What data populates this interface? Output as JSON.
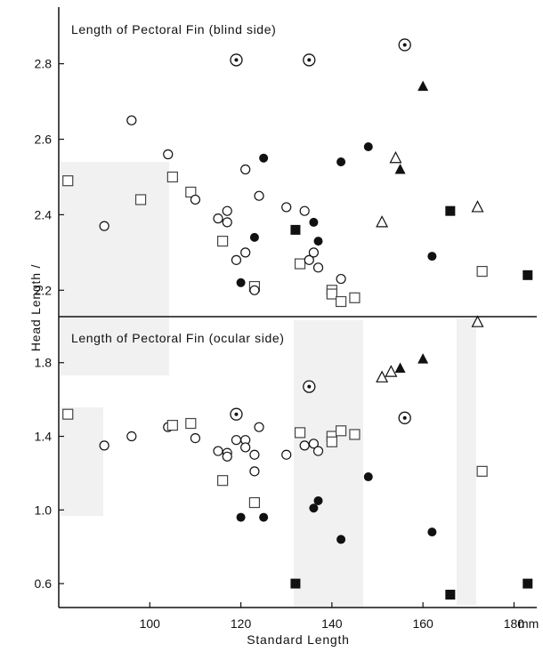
{
  "chart_data": {
    "type": "scatter",
    "ylabel": "Head Length /",
    "xlabel": "Standard Length",
    "x_unit": "mm",
    "xlim": [
      80,
      185
    ],
    "x_ticks": [
      100,
      120,
      140,
      160,
      180
    ],
    "x_tick_labels": [
      "100",
      "120",
      "140",
      "160",
      "180"
    ],
    "symbol_legend": {
      "open_circle": "○",
      "filled_circle": "●",
      "dotted_circle": "⊙",
      "open_square": "□",
      "filled_square": "■",
      "open_triangle": "△",
      "filled_triangle": "▲"
    },
    "panels": [
      {
        "title": "Length of Pectoral Fin (blind side)",
        "ylim": [
          2.13,
          2.95
        ],
        "y_ticks": [
          2.2,
          2.4,
          2.6,
          2.8
        ],
        "y_tick_labels": [
          "2.2",
          "2.4",
          "2.6",
          "2.8"
        ],
        "points": [
          {
            "x": 82,
            "y": 2.49,
            "marker": "open_square"
          },
          {
            "x": 90,
            "y": 2.37,
            "marker": "open_circle"
          },
          {
            "x": 96,
            "y": 2.65,
            "marker": "open_circle"
          },
          {
            "x": 98,
            "y": 2.44,
            "marker": "open_square"
          },
          {
            "x": 104,
            "y": 2.56,
            "marker": "open_circle"
          },
          {
            "x": 105,
            "y": 2.5,
            "marker": "open_square"
          },
          {
            "x": 109,
            "y": 2.46,
            "marker": "open_square"
          },
          {
            "x": 110,
            "y": 2.44,
            "marker": "open_circle"
          },
          {
            "x": 115,
            "y": 2.39,
            "marker": "open_circle"
          },
          {
            "x": 116,
            "y": 2.33,
            "marker": "open_square"
          },
          {
            "x": 117,
            "y": 2.41,
            "marker": "open_circle"
          },
          {
            "x": 117,
            "y": 2.38,
            "marker": "open_circle"
          },
          {
            "x": 119,
            "y": 2.28,
            "marker": "open_circle"
          },
          {
            "x": 119,
            "y": 2.81,
            "marker": "dotted_circle"
          },
          {
            "x": 120,
            "y": 2.22,
            "marker": "filled_circle"
          },
          {
            "x": 121,
            "y": 2.3,
            "marker": "open_circle"
          },
          {
            "x": 121,
            "y": 2.52,
            "marker": "open_circle"
          },
          {
            "x": 123,
            "y": 2.34,
            "marker": "filled_circle"
          },
          {
            "x": 123,
            "y": 2.21,
            "marker": "open_square"
          },
          {
            "x": 123,
            "y": 2.2,
            "marker": "open_circle"
          },
          {
            "x": 124,
            "y": 2.45,
            "marker": "open_circle"
          },
          {
            "x": 125,
            "y": 2.55,
            "marker": "filled_circle"
          },
          {
            "x": 130,
            "y": 2.42,
            "marker": "open_circle"
          },
          {
            "x": 132,
            "y": 2.36,
            "marker": "filled_square"
          },
          {
            "x": 133,
            "y": 2.27,
            "marker": "open_square"
          },
          {
            "x": 134,
            "y": 2.41,
            "marker": "open_circle"
          },
          {
            "x": 135,
            "y": 2.81,
            "marker": "dotted_circle"
          },
          {
            "x": 135,
            "y": 2.28,
            "marker": "open_circle"
          },
          {
            "x": 136,
            "y": 2.38,
            "marker": "filled_circle"
          },
          {
            "x": 136,
            "y": 2.3,
            "marker": "open_circle"
          },
          {
            "x": 137,
            "y": 2.33,
            "marker": "filled_circle"
          },
          {
            "x": 137,
            "y": 2.26,
            "marker": "open_circle"
          },
          {
            "x": 140,
            "y": 2.2,
            "marker": "open_square"
          },
          {
            "x": 140,
            "y": 2.19,
            "marker": "open_square"
          },
          {
            "x": 142,
            "y": 2.23,
            "marker": "open_circle"
          },
          {
            "x": 142,
            "y": 2.54,
            "marker": "filled_circle"
          },
          {
            "x": 142,
            "y": 2.17,
            "marker": "open_square"
          },
          {
            "x": 145,
            "y": 2.18,
            "marker": "open_square"
          },
          {
            "x": 148,
            "y": 2.58,
            "marker": "filled_circle"
          },
          {
            "x": 151,
            "y": 2.38,
            "marker": "open_triangle"
          },
          {
            "x": 154,
            "y": 2.55,
            "marker": "open_triangle"
          },
          {
            "x": 155,
            "y": 2.52,
            "marker": "filled_triangle"
          },
          {
            "x": 156,
            "y": 2.85,
            "marker": "dotted_circle"
          },
          {
            "x": 160,
            "y": 2.74,
            "marker": "filled_triangle"
          },
          {
            "x": 162,
            "y": 2.29,
            "marker": "filled_circle"
          },
          {
            "x": 166,
            "y": 2.41,
            "marker": "filled_square"
          },
          {
            "x": 172,
            "y": 2.42,
            "marker": "open_triangle"
          },
          {
            "x": 173,
            "y": 2.25,
            "marker": "open_square"
          },
          {
            "x": 183,
            "y": 2.24,
            "marker": "filled_square"
          }
        ]
      },
      {
        "title": "Length of Pectoral Fin (ocular side)",
        "ylim": [
          0.47,
          2.05
        ],
        "y_ticks": [
          0.6,
          1.0,
          1.4,
          1.8
        ],
        "y_tick_labels": [
          "0.6",
          "1.0",
          "1.4",
          "1.8"
        ],
        "points": [
          {
            "x": 82,
            "y": 1.52,
            "marker": "open_square"
          },
          {
            "x": 90,
            "y": 1.35,
            "marker": "open_circle"
          },
          {
            "x": 96,
            "y": 1.4,
            "marker": "open_circle"
          },
          {
            "x": 104,
            "y": 1.45,
            "marker": "open_circle"
          },
          {
            "x": 105,
            "y": 1.46,
            "marker": "open_square"
          },
          {
            "x": 109,
            "y": 1.47,
            "marker": "open_square"
          },
          {
            "x": 110,
            "y": 1.39,
            "marker": "open_circle"
          },
          {
            "x": 115,
            "y": 1.32,
            "marker": "open_circle"
          },
          {
            "x": 116,
            "y": 1.16,
            "marker": "open_square"
          },
          {
            "x": 117,
            "y": 1.31,
            "marker": "open_circle"
          },
          {
            "x": 117,
            "y": 1.29,
            "marker": "open_circle"
          },
          {
            "x": 119,
            "y": 1.38,
            "marker": "open_circle"
          },
          {
            "x": 119,
            "y": 1.52,
            "marker": "dotted_circle"
          },
          {
            "x": 120,
            "y": 0.96,
            "marker": "filled_circle"
          },
          {
            "x": 121,
            "y": 1.38,
            "marker": "open_circle"
          },
          {
            "x": 121,
            "y": 1.34,
            "marker": "open_circle"
          },
          {
            "x": 123,
            "y": 1.3,
            "marker": "open_circle"
          },
          {
            "x": 123,
            "y": 1.04,
            "marker": "open_square"
          },
          {
            "x": 123,
            "y": 1.21,
            "marker": "open_circle"
          },
          {
            "x": 124,
            "y": 1.45,
            "marker": "open_circle"
          },
          {
            "x": 125,
            "y": 0.96,
            "marker": "filled_circle"
          },
          {
            "x": 130,
            "y": 1.3,
            "marker": "open_circle"
          },
          {
            "x": 132,
            "y": 0.6,
            "marker": "filled_square"
          },
          {
            "x": 133,
            "y": 1.42,
            "marker": "open_square"
          },
          {
            "x": 134,
            "y": 1.35,
            "marker": "open_circle"
          },
          {
            "x": 135,
            "y": 1.67,
            "marker": "dotted_circle"
          },
          {
            "x": 136,
            "y": 1.01,
            "marker": "filled_circle"
          },
          {
            "x": 136,
            "y": 1.36,
            "marker": "open_circle"
          },
          {
            "x": 137,
            "y": 1.05,
            "marker": "filled_circle"
          },
          {
            "x": 137,
            "y": 1.32,
            "marker": "open_circle"
          },
          {
            "x": 140,
            "y": 1.4,
            "marker": "open_square"
          },
          {
            "x": 140,
            "y": 1.37,
            "marker": "open_square"
          },
          {
            "x": 142,
            "y": 0.84,
            "marker": "filled_circle"
          },
          {
            "x": 142,
            "y": 1.43,
            "marker": "open_square"
          },
          {
            "x": 145,
            "y": 1.41,
            "marker": "open_square"
          },
          {
            "x": 148,
            "y": 1.18,
            "marker": "filled_circle"
          },
          {
            "x": 151,
            "y": 1.72,
            "marker": "open_triangle"
          },
          {
            "x": 153,
            "y": 1.75,
            "marker": "open_triangle"
          },
          {
            "x": 155,
            "y": 1.77,
            "marker": "filled_triangle"
          },
          {
            "x": 156,
            "y": 1.5,
            "marker": "dotted_circle"
          },
          {
            "x": 160,
            "y": 1.82,
            "marker": "filled_triangle"
          },
          {
            "x": 162,
            "y": 0.88,
            "marker": "filled_circle"
          },
          {
            "x": 166,
            "y": 0.54,
            "marker": "filled_square"
          },
          {
            "x": 172,
            "y": 2.02,
            "marker": "open_triangle"
          },
          {
            "x": 173,
            "y": 1.21,
            "marker": "open_square"
          },
          {
            "x": 183,
            "y": 0.6,
            "marker": "filled_square"
          }
        ]
      }
    ]
  }
}
